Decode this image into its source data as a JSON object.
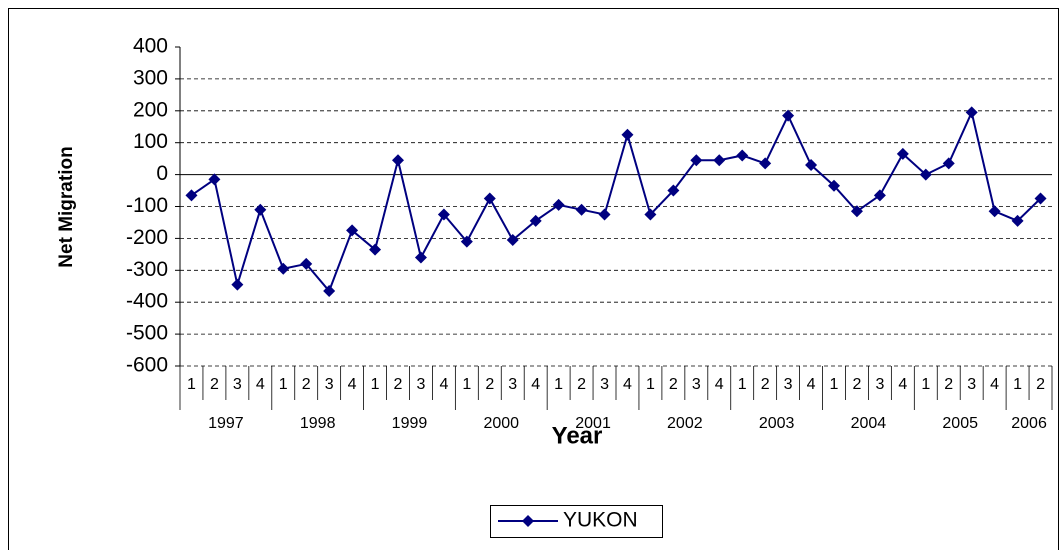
{
  "chart_data": {
    "type": "line",
    "x_title": "Year",
    "y_title": "Net Migration",
    "categories": [
      {
        "year": "1997",
        "quarter": "1"
      },
      {
        "year": "1997",
        "quarter": "2"
      },
      {
        "year": "1997",
        "quarter": "3"
      },
      {
        "year": "1997",
        "quarter": "4"
      },
      {
        "year": "1998",
        "quarter": "1"
      },
      {
        "year": "1998",
        "quarter": "2"
      },
      {
        "year": "1998",
        "quarter": "3"
      },
      {
        "year": "1998",
        "quarter": "4"
      },
      {
        "year": "1999",
        "quarter": "1"
      },
      {
        "year": "1999",
        "quarter": "2"
      },
      {
        "year": "1999",
        "quarter": "3"
      },
      {
        "year": "1999",
        "quarter": "4"
      },
      {
        "year": "2000",
        "quarter": "1"
      },
      {
        "year": "2000",
        "quarter": "2"
      },
      {
        "year": "2000",
        "quarter": "3"
      },
      {
        "year": "2000",
        "quarter": "4"
      },
      {
        "year": "2001",
        "quarter": "1"
      },
      {
        "year": "2001",
        "quarter": "2"
      },
      {
        "year": "2001",
        "quarter": "3"
      },
      {
        "year": "2001",
        "quarter": "4"
      },
      {
        "year": "2002",
        "quarter": "1"
      },
      {
        "year": "2002",
        "quarter": "2"
      },
      {
        "year": "2002",
        "quarter": "3"
      },
      {
        "year": "2002",
        "quarter": "4"
      },
      {
        "year": "2003",
        "quarter": "1"
      },
      {
        "year": "2003",
        "quarter": "2"
      },
      {
        "year": "2003",
        "quarter": "3"
      },
      {
        "year": "2003",
        "quarter": "4"
      },
      {
        "year": "2004",
        "quarter": "1"
      },
      {
        "year": "2004",
        "quarter": "2"
      },
      {
        "year": "2004",
        "quarter": "3"
      },
      {
        "year": "2004",
        "quarter": "4"
      },
      {
        "year": "2005",
        "quarter": "1"
      },
      {
        "year": "2005",
        "quarter": "2"
      },
      {
        "year": "2005",
        "quarter": "3"
      },
      {
        "year": "2005",
        "quarter": "4"
      },
      {
        "year": "2006",
        "quarter": "1"
      },
      {
        "year": "2006",
        "quarter": "2"
      }
    ],
    "series": [
      {
        "name": "YUKON",
        "color": "#000080",
        "values": [
          -65,
          -15,
          -345,
          -110,
          -295,
          -280,
          -365,
          -175,
          -235,
          45,
          -260,
          -125,
          -210,
          -75,
          -205,
          -145,
          -95,
          -110,
          -125,
          125,
          -125,
          -50,
          45,
          45,
          60,
          35,
          185,
          30,
          -35,
          -115,
          -65,
          65,
          0,
          35,
          195,
          -115,
          -145,
          -75
        ]
      }
    ],
    "ylim": [
      -600,
      400
    ],
    "yticks": [
      -600,
      -500,
      -400,
      -300,
      -200,
      -100,
      0,
      100,
      200,
      300,
      400
    ],
    "grid": true,
    "legend": "bottom"
  }
}
